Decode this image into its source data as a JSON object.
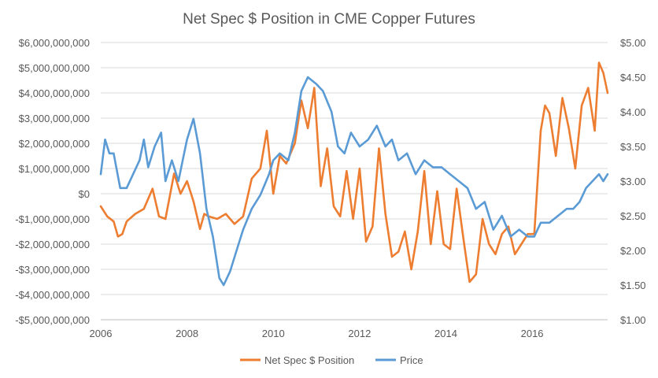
{
  "chart_data": {
    "type": "line",
    "title": "Net Spec $ Position in CME Copper Futures",
    "xlabel": "",
    "ylabel": "",
    "x_axis": {
      "min": 2006,
      "max": 2017.75,
      "tick_values": [
        2006,
        2008,
        2010,
        2012,
        2014,
        2016
      ],
      "tick_labels": [
        "2006",
        "2008",
        "2010",
        "2012",
        "2014",
        "2016"
      ]
    },
    "y_left": {
      "min": -5000000000,
      "max": 6000000000,
      "tick_values": [
        -5000000000,
        -4000000000,
        -3000000000,
        -2000000000,
        -1000000000,
        0,
        1000000000,
        2000000000,
        3000000000,
        4000000000,
        5000000000,
        6000000000
      ],
      "tick_labels": [
        "-$5,000,000,000",
        "-$4,000,000,000",
        "-$3,000,000,000",
        "-$2,000,000,000",
        "-$1,000,000,000",
        "$0",
        "$1,000,000,000",
        "$2,000,000,000",
        "$3,000,000,000",
        "$4,000,000,000",
        "$5,000,000,000",
        "$6,000,000,000"
      ]
    },
    "y_right": {
      "min": 1.0,
      "max": 5.0,
      "tick_values": [
        1.0,
        1.5,
        2.0,
        2.5,
        3.0,
        3.5,
        4.0,
        4.5,
        5.0
      ],
      "tick_labels": [
        "$1.00",
        "$1.50",
        "$2.00",
        "$2.50",
        "$3.00",
        "$3.50",
        "$4.00",
        "$4.50",
        "$5.00"
      ]
    },
    "grid": true,
    "legend_position": "bottom",
    "series": [
      {
        "name": "Net Spec $ Position",
        "axis": "left",
        "color": "#ED7D31",
        "x": [
          2006.0,
          2006.15,
          2006.3,
          2006.4,
          2006.5,
          2006.6,
          2006.8,
          2007.0,
          2007.2,
          2007.35,
          2007.5,
          2007.7,
          2007.85,
          2008.0,
          2008.15,
          2008.3,
          2008.4,
          2008.5,
          2008.7,
          2008.9,
          2009.1,
          2009.3,
          2009.5,
          2009.7,
          2009.85,
          2010.0,
          2010.15,
          2010.3,
          2010.5,
          2010.65,
          2010.8,
          2010.95,
          2011.1,
          2011.25,
          2011.4,
          2011.55,
          2011.7,
          2011.85,
          2012.0,
          2012.15,
          2012.3,
          2012.45,
          2012.6,
          2012.75,
          2012.9,
          2013.05,
          2013.2,
          2013.35,
          2013.5,
          2013.65,
          2013.8,
          2013.95,
          2014.1,
          2014.25,
          2014.4,
          2014.55,
          2014.7,
          2014.85,
          2015.0,
          2015.15,
          2015.3,
          2015.45,
          2015.6,
          2015.75,
          2015.9,
          2016.05,
          2016.2,
          2016.3,
          2016.4,
          2016.55,
          2016.7,
          2016.85,
          2017.0,
          2017.15,
          2017.3,
          2017.45,
          2017.55,
          2017.65,
          2017.75
        ],
        "values": [
          -500000000,
          -900000000,
          -1100000000,
          -1700000000,
          -1600000000,
          -1100000000,
          -800000000,
          -600000000,
          200000000,
          -900000000,
          -1000000000,
          800000000,
          0,
          500000000,
          -300000000,
          -1400000000,
          -800000000,
          -900000000,
          -1000000000,
          -800000000,
          -1200000000,
          -900000000,
          600000000,
          1000000000,
          2500000000,
          0,
          1500000000,
          1200000000,
          2000000000,
          3700000000,
          2600000000,
          4200000000,
          300000000,
          1800000000,
          -500000000,
          -900000000,
          900000000,
          -1000000000,
          1000000000,
          -1900000000,
          -1300000000,
          1800000000,
          -800000000,
          -2500000000,
          -2300000000,
          -1500000000,
          -3000000000,
          -1500000000,
          900000000,
          -2000000000,
          100000000,
          -2000000000,
          -2200000000,
          200000000,
          -1700000000,
          -3500000000,
          -3200000000,
          -1000000000,
          -2000000000,
          -2400000000,
          -1600000000,
          -1300000000,
          -2400000000,
          -2000000000,
          -1600000000,
          -1600000000,
          2500000000,
          3500000000,
          3200000000,
          1500000000,
          3800000000,
          2600000000,
          1000000000,
          3500000000,
          4200000000,
          2500000000,
          5200000000,
          4800000000,
          4000000000
        ]
      },
      {
        "name": "Price",
        "axis": "right",
        "color": "#5B9BD5",
        "x": [
          2006.0,
          2006.1,
          2006.2,
          2006.3,
          2006.45,
          2006.6,
          2006.75,
          2006.9,
          2007.0,
          2007.1,
          2007.25,
          2007.4,
          2007.5,
          2007.65,
          2007.8,
          2007.9,
          2008.0,
          2008.15,
          2008.3,
          2008.45,
          2008.6,
          2008.75,
          2008.85,
          2009.0,
          2009.15,
          2009.3,
          2009.5,
          2009.7,
          2009.9,
          2010.0,
          2010.15,
          2010.35,
          2010.5,
          2010.65,
          2010.8,
          2011.0,
          2011.15,
          2011.35,
          2011.5,
          2011.65,
          2011.8,
          2012.0,
          2012.2,
          2012.4,
          2012.6,
          2012.75,
          2012.9,
          2013.1,
          2013.3,
          2013.5,
          2013.7,
          2013.9,
          2014.1,
          2014.3,
          2014.5,
          2014.7,
          2014.9,
          2015.1,
          2015.3,
          2015.5,
          2015.7,
          2015.9,
          2016.05,
          2016.2,
          2016.4,
          2016.6,
          2016.8,
          2016.95,
          2017.1,
          2017.25,
          2017.4,
          2017.55,
          2017.65,
          2017.75
        ],
        "values": [
          3.1,
          3.6,
          3.4,
          3.4,
          2.9,
          2.9,
          3.1,
          3.3,
          3.6,
          3.2,
          3.5,
          3.7,
          3.0,
          3.3,
          3.0,
          3.3,
          3.6,
          3.9,
          3.4,
          2.6,
          2.2,
          1.6,
          1.5,
          1.7,
          2.0,
          2.3,
          2.6,
          2.8,
          3.1,
          3.3,
          3.4,
          3.3,
          3.7,
          4.3,
          4.5,
          4.4,
          4.3,
          4.0,
          3.5,
          3.4,
          3.7,
          3.5,
          3.6,
          3.8,
          3.5,
          3.6,
          3.3,
          3.4,
          3.1,
          3.3,
          3.2,
          3.2,
          3.1,
          3.0,
          2.9,
          2.6,
          2.7,
          2.3,
          2.5,
          2.2,
          2.3,
          2.2,
          2.2,
          2.4,
          2.4,
          2.5,
          2.6,
          2.6,
          2.7,
          2.9,
          3.0,
          3.1,
          3.0,
          3.1
        ]
      }
    ]
  }
}
